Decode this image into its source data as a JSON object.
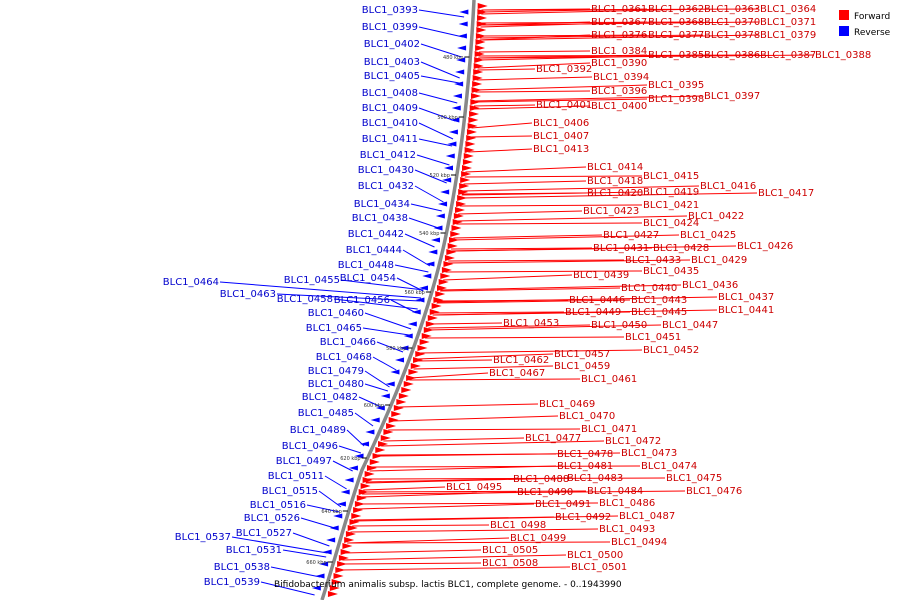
{
  "caption": "Bifidobacterium animalis subsp. lactis BLC1, complete genome. - 0..1943990",
  "legend": {
    "forward": {
      "label": "Forward",
      "color": "#ff0000"
    },
    "reverse": {
      "label": "Reverse",
      "color": "#0000ff"
    }
  },
  "colors": {
    "backbone": "#888888",
    "forward_line": "#ff0000",
    "reverse_line": "#0000ff",
    "forward_text": "#cc0000",
    "reverse_text": "#0000cc"
  },
  "scale_ticks": [
    "480 kbp",
    "500 kbp",
    "520 kbp",
    "540 kbp",
    "560 kbp",
    "580 kbp",
    "600 kbp",
    "620 kbp",
    "640 kbp",
    "660 kbp"
  ],
  "forward_genes": [
    "BLC1_0361",
    "BLC1_0362",
    "BLC1_0363",
    "BLC1_0364",
    "BLC1_0367",
    "BLC1_0368",
    "BLC1_0370",
    "BLC1_0371",
    "BLC1_0376",
    "BLC1_0377",
    "BLC1_0378",
    "BLC1_0379",
    "BLC1_0384",
    "BLC1_0385",
    "BLC1_0386",
    "BLC1_0387",
    "BLC1_0388",
    "BLC1_0390",
    "BLC1_0392",
    "BLC1_0394",
    "BLC1_0395",
    "BLC1_0396",
    "BLC1_0398",
    "BLC1_0397",
    "BLC1_0401",
    "BLC1_0400",
    "BLC1_0406",
    "BLC1_0407",
    "BLC1_0413",
    "BLC1_0414",
    "BLC1_0415",
    "BLC1_0418",
    "BLC1_0416",
    "BLC1_0420",
    "BLC1_0419",
    "BLC1_0417",
    "BLC1_0421",
    "BLC1_0423",
    "BLC1_0422",
    "BLC1_0424",
    "BLC1_0427",
    "BLC1_0425",
    "BLC1_0431",
    "BLC1_0428",
    "BLC1_0426",
    "BLC1_0433",
    "BLC1_0429",
    "BLC1_0439",
    "BLC1_0435",
    "BLC1_0440",
    "BLC1_0436",
    "BLC1_0446",
    "BLC1_0443",
    "BLC1_0437",
    "BLC1_0449",
    "BLC1_0445",
    "BLC1_0441",
    "BLC1_0453",
    "BLC1_0450",
    "BLC1_0447",
    "BLC1_0451",
    "BLC1_0452",
    "BLC1_0457",
    "BLC1_0462",
    "BLC1_0459",
    "BLC1_0467",
    "BLC1_0461",
    "BLC1_0469",
    "BLC1_0470",
    "BLC1_0471",
    "BLC1_0477",
    "BLC1_0472",
    "BLC1_0478",
    "BLC1_0473",
    "BLC1_0481",
    "BLC1_0474",
    "BLC1_0488",
    "BLC1_0483",
    "BLC1_0475",
    "BLC1_0495",
    "BLC1_0490",
    "BLC1_0484",
    "BLC1_0476",
    "BLC1_0491",
    "BLC1_0486",
    "BLC1_0492",
    "BLC1_0487",
    "BLC1_0498",
    "BLC1_0493",
    "BLC1_0499",
    "BLC1_0494",
    "BLC1_0505",
    "BLC1_0500",
    "BLC1_0508",
    "BLC1_0501"
  ],
  "reverse_genes": [
    "BLC1_0393",
    "BLC1_0399",
    "BLC1_0402",
    "BLC1_0403",
    "BLC1_0405",
    "BLC1_0408",
    "BLC1_0409",
    "BLC1_0410",
    "BLC1_0411",
    "BLC1_0412",
    "BLC1_0430",
    "BLC1_0432",
    "BLC1_0434",
    "BLC1_0438",
    "BLC1_0442",
    "BLC1_0444",
    "BLC1_0448",
    "BLC1_0455",
    "BLC1_0454",
    "BLC1_0464",
    "BLC1_0463",
    "BLC1_0458",
    "BLC1_0456",
    "BLC1_0460",
    "BLC1_0465",
    "BLC1_0466",
    "BLC1_0468",
    "BLC1_0479",
    "BLC1_0480",
    "BLC1_0482",
    "BLC1_0485",
    "BLC1_0489",
    "BLC1_0496",
    "BLC1_0497",
    "BLC1_0511",
    "BLC1_0515",
    "BLC1_0516",
    "BLC1_0526",
    "BLC1_0527",
    "BLC1_0537",
    "BLC1_0531",
    "BLC1_0538",
    "BLC1_0539"
  ]
}
